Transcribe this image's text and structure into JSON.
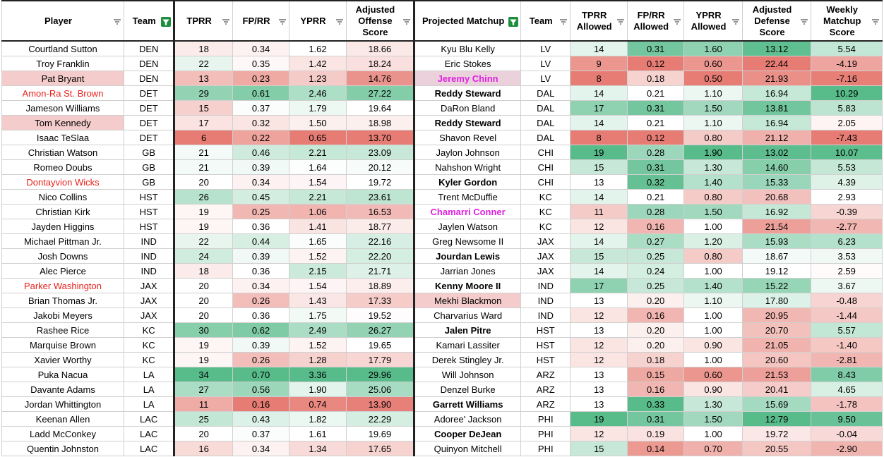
{
  "table": {
    "headers": [
      "Player",
      "Team",
      "TPRR",
      "FP/RR",
      "YPRR",
      "Adjusted Offense Score",
      "Projected Matchup",
      "Team",
      "TPRR Allowed",
      "FP/RR Allowed",
      "YPRR Allowed",
      "Adjusted Defense Score",
      "Weekly Matchup Score"
    ],
    "rows": [
      [
        "Courtland Sutton",
        "DEN",
        "18",
        "0.34",
        "1.62",
        "18.66",
        "Kyu Blu Kelly",
        "LV",
        "14",
        "0.31",
        "1.60",
        "13.12",
        "5.54"
      ],
      [
        "Troy Franklin",
        "DEN",
        "22",
        "0.35",
        "1.42",
        "18.24",
        "Eric Stokes",
        "LV",
        "9",
        "0.12",
        "0.60",
        "22.44",
        "-4.19"
      ],
      [
        "Pat Bryant",
        "DEN",
        "13",
        "0.23",
        "1.23",
        "14.76",
        "Jeremy Chinn",
        "LV",
        "8",
        "0.18",
        "0.50",
        "21.93",
        "-7.16"
      ],
      [
        "Amon-Ra St. Brown",
        "DET",
        "29",
        "0.61",
        "2.46",
        "27.22",
        "Reddy Steward",
        "DAL",
        "14",
        "0.21",
        "1.10",
        "16.94",
        "10.29"
      ],
      [
        "Jameson Williams",
        "DET",
        "15",
        "0.37",
        "1.79",
        "19.64",
        "DaRon Bland",
        "DAL",
        "17",
        "0.31",
        "1.50",
        "13.81",
        "5.83"
      ],
      [
        "Tom Kennedy",
        "DET",
        "17",
        "0.32",
        "1.50",
        "18.98",
        "Reddy Steward",
        "DAL",
        "14",
        "0.21",
        "1.10",
        "16.94",
        "2.05"
      ],
      [
        "Isaac TeSlaa",
        "DET",
        "6",
        "0.22",
        "0.65",
        "13.70",
        "Shavon Revel",
        "DAL",
        "8",
        "0.12",
        "0.80",
        "21.12",
        "-7.43"
      ],
      [
        "Christian Watson",
        "GB",
        "21",
        "0.46",
        "2.21",
        "23.09",
        "Jaylon Johnson",
        "CHI",
        "19",
        "0.28",
        "1.90",
        "13.02",
        "10.07"
      ],
      [
        "Romeo Doubs",
        "GB",
        "21",
        "0.39",
        "1.64",
        "20.12",
        "Nahshon Wright",
        "CHI",
        "15",
        "0.31",
        "1.30",
        "14.60",
        "5.53"
      ],
      [
        "Dontayvion Wicks",
        "GB",
        "20",
        "0.34",
        "1.54",
        "19.72",
        "Kyler Gordon",
        "CHI",
        "13",
        "0.32",
        "1.40",
        "15.33",
        "4.39"
      ],
      [
        "Nico Collins",
        "HST",
        "26",
        "0.45",
        "2.21",
        "23.61",
        "Trent McDuffie",
        "KC",
        "14",
        "0.21",
        "0.80",
        "20.68",
        "2.93"
      ],
      [
        "Christian Kirk",
        "HST",
        "19",
        "0.25",
        "1.06",
        "16.53",
        "Chamarri Conner",
        "KC",
        "11",
        "0.28",
        "1.50",
        "16.92",
        "-0.39"
      ],
      [
        "Jayden Higgins",
        "HST",
        "19",
        "0.36",
        "1.41",
        "18.77",
        "Jaylen Watson",
        "KC",
        "12",
        "0.16",
        "1.00",
        "21.54",
        "-2.77"
      ],
      [
        "Michael Pittman Jr.",
        "IND",
        "22",
        "0.44",
        "1.65",
        "22.16",
        "Greg Newsome II",
        "JAX",
        "14",
        "0.27",
        "1.20",
        "15.93",
        "6.23"
      ],
      [
        "Josh Downs",
        "IND",
        "24",
        "0.39",
        "1.52",
        "22.20",
        "Jourdan Lewis",
        "JAX",
        "15",
        "0.25",
        "0.80",
        "18.67",
        "3.53"
      ],
      [
        "Alec Pierce",
        "IND",
        "18",
        "0.36",
        "2.15",
        "21.71",
        "Jarrian Jones",
        "JAX",
        "14",
        "0.24",
        "1.00",
        "19.12",
        "2.59"
      ],
      [
        "Parker Washington",
        "JAX",
        "20",
        "0.34",
        "1.54",
        "18.89",
        "Kenny Moore II",
        "IND",
        "17",
        "0.25",
        "1.40",
        "15.22",
        "3.67"
      ],
      [
        "Brian Thomas Jr.",
        "JAX",
        "20",
        "0.26",
        "1.43",
        "17.33",
        "Mekhi Blackmon",
        "IND",
        "13",
        "0.20",
        "1.10",
        "17.80",
        "-0.48"
      ],
      [
        "Jakobi Meyers",
        "JAX",
        "20",
        "0.36",
        "1.75",
        "19.52",
        "Charvarius Ward",
        "IND",
        "12",
        "0.16",
        "1.00",
        "20.95",
        "-1.44"
      ],
      [
        "Rashee Rice",
        "KC",
        "30",
        "0.62",
        "2.49",
        "26.27",
        "Jalen Pitre",
        "HST",
        "13",
        "0.20",
        "1.00",
        "20.70",
        "5.57"
      ],
      [
        "Marquise Brown",
        "KC",
        "19",
        "0.39",
        "1.52",
        "19.65",
        "Kamari Lassiter",
        "HST",
        "12",
        "0.20",
        "0.90",
        "21.05",
        "-1.40"
      ],
      [
        "Xavier Worthy",
        "KC",
        "19",
        "0.26",
        "1.28",
        "17.79",
        "Derek Stingley Jr.",
        "HST",
        "12",
        "0.18",
        "1.00",
        "20.60",
        "-2.81"
      ],
      [
        "Puka Nacua",
        "LA",
        "34",
        "0.70",
        "3.36",
        "29.96",
        "Will Johnson",
        "ARZ",
        "13",
        "0.15",
        "0.60",
        "21.53",
        "8.43"
      ],
      [
        "Davante Adams",
        "LA",
        "27",
        "0.56",
        "1.90",
        "25.06",
        "Denzel Burke",
        "ARZ",
        "13",
        "0.16",
        "0.90",
        "20.41",
        "4.65"
      ],
      [
        "Jordan Whittington",
        "LA",
        "11",
        "0.16",
        "0.74",
        "13.90",
        "Garrett Williams",
        "ARZ",
        "13",
        "0.33",
        "1.30",
        "15.69",
        "-1.78"
      ],
      [
        "Keenan Allen",
        "LAC",
        "25",
        "0.43",
        "1.82",
        "22.29",
        "Adoree' Jackson",
        "PHI",
        "19",
        "0.31",
        "1.50",
        "12.79",
        "9.50"
      ],
      [
        "Ladd McConkey",
        "LAC",
        "20",
        "0.37",
        "1.61",
        "19.69",
        "Cooper DeJean",
        "PHI",
        "12",
        "0.19",
        "1.00",
        "19.72",
        "-0.04"
      ],
      [
        "Quentin Johnston",
        "LAC",
        "16",
        "0.34",
        "1.34",
        "17.65",
        "Quinyon Mitchell",
        "PHI",
        "15",
        "0.14",
        "0.70",
        "20.55",
        "-2.90"
      ]
    ]
  }
}
